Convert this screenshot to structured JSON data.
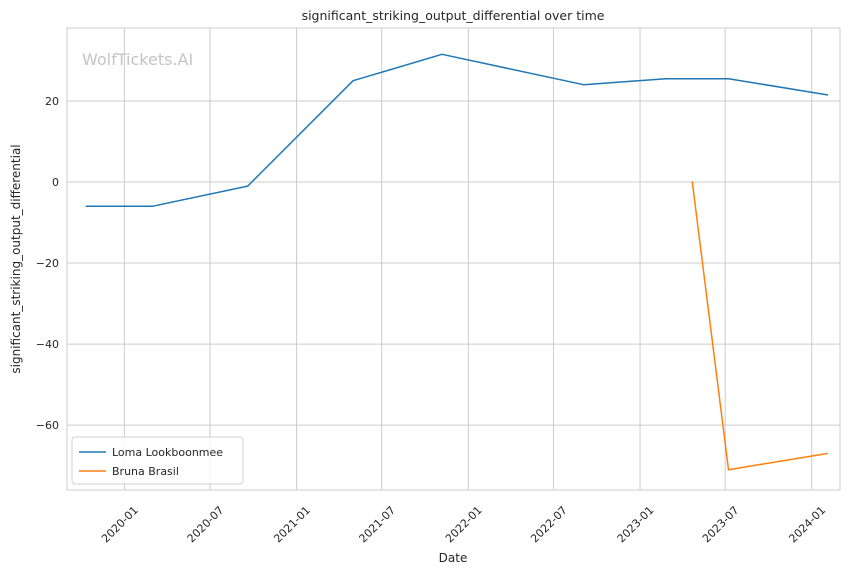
{
  "chart_data": {
    "type": "line",
    "title": "significant_striking_output_differential over time",
    "xlabel": "Date",
    "ylabel": "significant_striking_output_differential",
    "watermark": "WolfTickets.AI",
    "x_ticks": [
      "2020-01",
      "2020-07",
      "2021-01",
      "2021-07",
      "2022-01",
      "2022-07",
      "2023-01",
      "2023-07",
      "2024-01"
    ],
    "y_ticks": [
      20,
      0,
      -20,
      -40,
      -60
    ],
    "y_tick_labels": [
      "20",
      "0",
      "−20",
      "−40",
      "−60"
    ],
    "xlim": [
      "2019-09-01",
      "2024-03-01"
    ],
    "ylim": [
      -76,
      38
    ],
    "grid": true,
    "legend_position": "lower-left",
    "series": [
      {
        "name": "Loma Lookboonmee",
        "color": "#1f77b4",
        "x": [
          "2019-10-12",
          "2020-02-29",
          "2020-09-19",
          "2021-05-01",
          "2021-11-06",
          "2022-09-03",
          "2023-02-25",
          "2023-07-08",
          "2024-02-03"
        ],
        "y": [
          -6,
          -6,
          -1,
          25,
          31.5,
          24,
          25.5,
          25.5,
          21.5
        ]
      },
      {
        "name": "Bruna Brasil",
        "color": "#ff7f0e",
        "x": [
          "2023-04-22",
          "2023-07-08",
          "2024-02-03"
        ],
        "y": [
          0,
          -71,
          -67
        ]
      }
    ]
  }
}
